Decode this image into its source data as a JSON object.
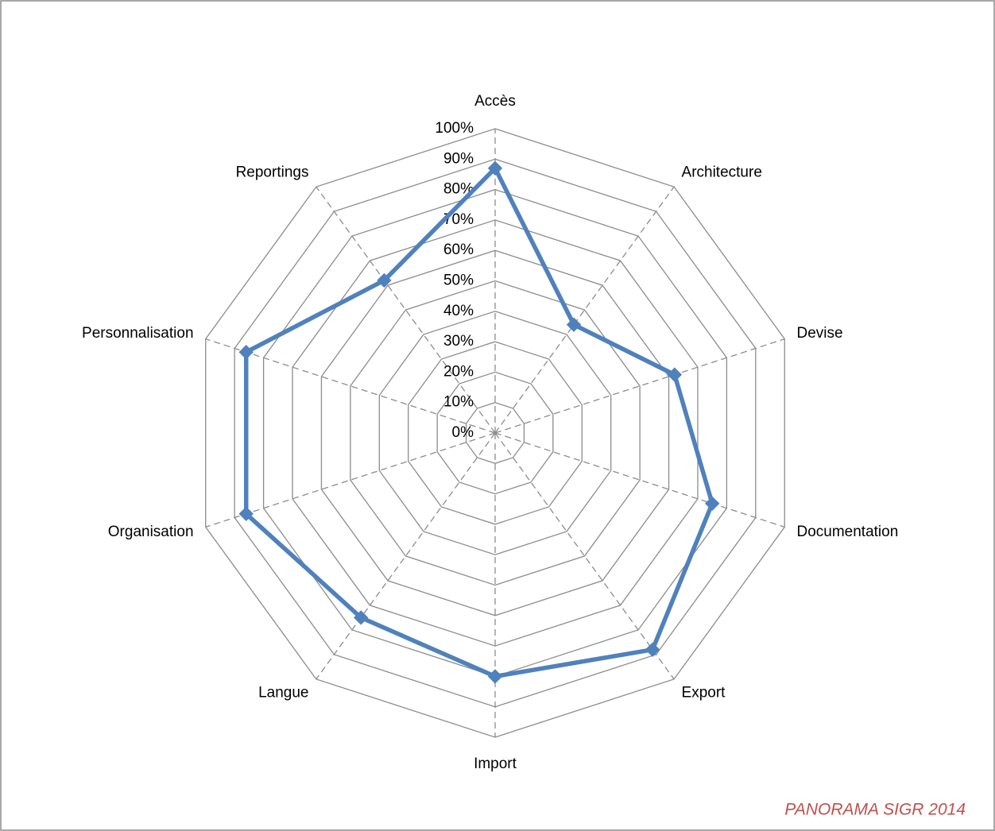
{
  "chart_data": {
    "type": "radar",
    "categories": [
      "Accès",
      "Architecture",
      "Devise",
      "Documentation",
      "Export",
      "Import",
      "Langue",
      "Organisation",
      "Personnalisation",
      "Reportings"
    ],
    "values": [
      87,
      44,
      62,
      75,
      88,
      80,
      75,
      86,
      86,
      62
    ],
    "color": "#4f81bd",
    "ylim": [
      0,
      100
    ],
    "yticks": [
      {
        "value": 0,
        "label": "0%"
      },
      {
        "value": 10,
        "label": "10%"
      },
      {
        "value": 20,
        "label": "20%"
      },
      {
        "value": 30,
        "label": "30%"
      },
      {
        "value": 40,
        "label": "40%"
      },
      {
        "value": 50,
        "label": "50%"
      },
      {
        "value": 60,
        "label": "60%"
      },
      {
        "value": 70,
        "label": "70%"
      },
      {
        "value": 80,
        "label": "80%"
      },
      {
        "value": 90,
        "label": "90%"
      },
      {
        "value": 100,
        "label": "100%"
      }
    ],
    "grid": true,
    "annotation": "PANORAMA SIGR 2014"
  }
}
